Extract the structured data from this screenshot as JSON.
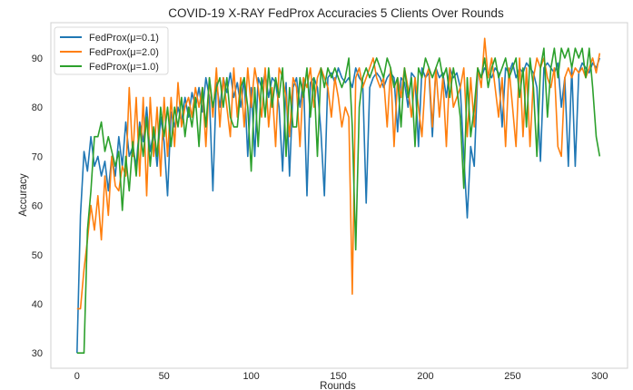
{
  "chart_data": {
    "type": "line",
    "title": "COVID-19 X-RAY FedProx Accuracies 5 Clients Over Rounds",
    "xlabel": "Rounds",
    "ylabel": "Accuracy",
    "xlim": [
      -15,
      316
    ],
    "ylim": [
      26.9,
      97.2
    ],
    "xticks": [
      0,
      50,
      100,
      150,
      200,
      250,
      300
    ],
    "yticks": [
      30,
      40,
      50,
      60,
      70,
      80,
      90
    ],
    "grid": false,
    "legend_position": "top-left",
    "x": [
      0,
      2,
      4,
      6,
      8,
      10,
      12,
      14,
      16,
      18,
      20,
      22,
      24,
      26,
      28,
      30,
      32,
      34,
      36,
      38,
      40,
      42,
      44,
      46,
      48,
      50,
      52,
      54,
      56,
      58,
      60,
      62,
      64,
      66,
      68,
      70,
      72,
      74,
      76,
      78,
      80,
      82,
      84,
      86,
      88,
      90,
      92,
      94,
      96,
      98,
      100,
      102,
      104,
      106,
      108,
      110,
      112,
      114,
      116,
      118,
      120,
      122,
      124,
      126,
      128,
      130,
      132,
      134,
      136,
      138,
      140,
      142,
      144,
      146,
      148,
      150,
      152,
      154,
      156,
      158,
      160,
      162,
      164,
      166,
      168,
      170,
      172,
      174,
      176,
      178,
      180,
      182,
      184,
      186,
      188,
      190,
      192,
      194,
      196,
      198,
      200,
      202,
      204,
      206,
      208,
      210,
      212,
      214,
      216,
      218,
      220,
      222,
      224,
      226,
      228,
      230,
      232,
      234,
      236,
      238,
      240,
      242,
      244,
      246,
      248,
      250,
      252,
      254,
      256,
      258,
      260,
      262,
      264,
      266,
      268,
      270,
      272,
      274,
      276,
      278,
      280,
      282,
      284,
      286,
      288,
      290,
      292,
      294,
      296,
      298,
      300
    ],
    "series": [
      {
        "name": "FedProx(μ=0.1)",
        "color": "#1f77b4",
        "values": [
          30,
          58,
          71,
          67,
          74,
          68,
          70,
          66,
          69,
          63,
          70,
          66,
          74,
          68,
          77,
          70,
          72,
          68,
          77,
          73,
          80,
          71,
          75,
          68,
          78,
          73,
          62,
          79,
          76,
          80,
          77,
          82,
          78,
          83,
          80,
          84,
          79,
          86,
          82,
          63,
          85,
          80,
          86,
          83,
          87,
          82,
          85,
          80,
          86,
          70,
          84,
          70,
          86,
          84,
          87,
          82,
          86,
          85,
          80,
          67,
          85,
          66,
          84,
          86,
          80,
          86,
          62,
          85,
          86,
          84,
          75,
          62,
          86,
          87,
          85,
          88,
          86,
          85,
          86,
          84,
          88,
          86,
          85,
          60.5,
          84,
          86,
          87,
          86,
          84,
          86,
          87,
          86,
          75,
          86,
          85,
          80,
          87,
          86,
          72,
          88,
          86,
          87,
          74,
          88,
          86,
          87,
          82,
          88,
          86,
          87,
          84,
          70,
          57.5,
          72,
          68,
          87,
          86,
          88,
          87,
          86,
          88,
          87,
          76,
          88,
          87,
          89,
          86,
          88,
          87,
          89,
          88,
          87,
          84,
          69,
          88,
          89,
          88,
          87,
          89,
          80,
          86,
          68,
          88,
          68,
          87,
          89,
          88,
          87,
          89,
          88,
          90
        ]
      },
      {
        "name": "FedProx(μ=2.0)",
        "color": "#ff7f0e",
        "values": [
          39,
          39,
          47,
          53,
          60,
          55,
          62,
          53,
          66,
          58,
          70,
          64,
          63,
          68,
          66,
          84,
          70,
          82,
          66,
          82,
          62,
          82,
          70,
          80,
          66,
          82,
          70,
          82,
          72,
          85,
          76,
          80,
          82,
          78,
          84,
          80,
          84,
          72,
          86,
          78,
          88,
          76,
          86,
          80,
          74,
          88,
          78,
          86,
          76,
          88,
          80,
          88,
          84,
          78,
          88,
          76,
          84,
          72,
          88,
          86,
          82,
          74,
          86,
          84,
          72,
          86,
          84,
          88,
          80,
          86,
          88,
          86,
          84,
          78,
          86,
          82,
          76,
          80,
          78,
          42,
          86,
          88,
          84,
          86,
          88,
          90,
          86,
          84,
          86,
          76,
          88,
          72,
          86,
          82,
          88,
          84,
          78,
          86,
          80,
          74,
          86,
          88,
          76,
          88,
          78,
          86,
          72,
          88,
          80,
          82,
          84,
          88,
          74,
          86,
          76,
          88,
          84,
          94,
          86,
          90,
          84,
          78,
          86,
          72,
          88,
          80,
          72,
          90,
          74,
          88,
          72,
          86,
          90,
          88,
          90,
          86,
          84,
          88,
          72,
          70,
          86,
          88,
          86,
          88,
          87,
          88,
          86,
          88,
          90,
          87,
          91
        ]
      },
      {
        "name": "FedProx(μ=1.0)",
        "color": "#2ca02c",
        "values": [
          30,
          30,
          30,
          55,
          63,
          74,
          74,
          77,
          71,
          74,
          71,
          68,
          71,
          59,
          70,
          63,
          73,
          66,
          76,
          70,
          78,
          68,
          76,
          70,
          80,
          74,
          80,
          72,
          80,
          76,
          82,
          74,
          80,
          76,
          82,
          72,
          84,
          76,
          86,
          80,
          84,
          86,
          80,
          86,
          78,
          76,
          76,
          84,
          86,
          80,
          67,
          84,
          72,
          86,
          78,
          88,
          80,
          86,
          82,
          88,
          70,
          84,
          76,
          76,
          86,
          82,
          88,
          78,
          86,
          70,
          88,
          84,
          88,
          86,
          88,
          86,
          84,
          86,
          90,
          76,
          51,
          80,
          86,
          88,
          86,
          88,
          90,
          88,
          86,
          90,
          88,
          84,
          86,
          76,
          88,
          82,
          86,
          72,
          88,
          86,
          90,
          88,
          86,
          88,
          90,
          86,
          88,
          82,
          88,
          84,
          78,
          63.5,
          86,
          74,
          80,
          88,
          86,
          90,
          84,
          88,
          90,
          86,
          88,
          90,
          86,
          88,
          90,
          82,
          88,
          76,
          90,
          84,
          70,
          88,
          92,
          78,
          88,
          92,
          86,
          92,
          90,
          92,
          88,
          92,
          90,
          92,
          86,
          92,
          84,
          74,
          70
        ]
      }
    ]
  }
}
